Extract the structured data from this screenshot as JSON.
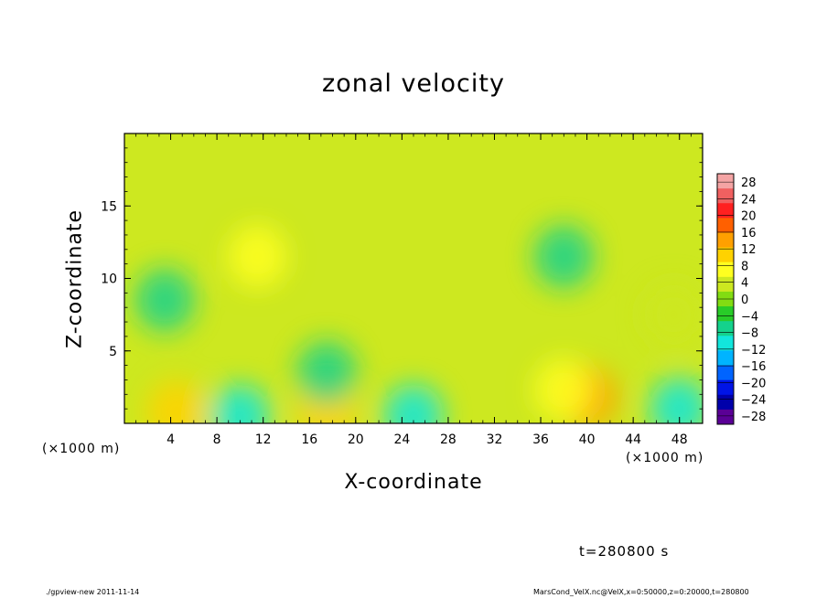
{
  "chart_data": {
    "type": "heatmap",
    "title": "zonal velocity",
    "xlabel": "X-coordinate",
    "ylabel": "Z-coordinate",
    "x_unit": "(×1000 m)",
    "x_range": [
      0,
      50
    ],
    "y_range": [
      0,
      20
    ],
    "x_ticks": [
      4,
      8,
      12,
      16,
      20,
      24,
      28,
      32,
      36,
      40,
      44,
      48
    ],
    "y_ticks": [
      5,
      10,
      15
    ],
    "colorbar": {
      "levels": [
        28,
        24,
        20,
        16,
        12,
        8,
        4,
        0,
        -4,
        -8,
        -12,
        -16,
        -20,
        -24,
        -28
      ],
      "range": [
        -30,
        30
      ],
      "colors": [
        "#f4a4a4",
        "#f06060",
        "#ff2020",
        "#ff6000",
        "#ffa000",
        "#ffd200",
        "#ffff20",
        "#cde820",
        "#82dc12",
        "#28cc28",
        "#14d28c",
        "#12e6dc",
        "#00b4ff",
        "#0064ff",
        "#0014e6",
        "#0000aa",
        "#5a0096"
      ]
    },
    "features": [
      {
        "x": 4.5,
        "z": 0.8,
        "value": 10
      },
      {
        "x": 17.5,
        "z": 1.0,
        "value": 9
      },
      {
        "x": 11.5,
        "z": 11.5,
        "value": 6
      },
      {
        "x": 40.0,
        "z": 1.8,
        "value": 14
      },
      {
        "x": 38.0,
        "z": 2.3,
        "value": 8
      },
      {
        "x": 47.5,
        "z": 7.5,
        "value": 5
      },
      {
        "x": 3.5,
        "z": 8.5,
        "value": -8
      },
      {
        "x": 38.0,
        "z": 11.5,
        "value": -8
      },
      {
        "x": 17.5,
        "z": 3.5,
        "value": -8
      },
      {
        "x": 10.0,
        "z": 0.5,
        "value": -9
      },
      {
        "x": 25.0,
        "z": 0.5,
        "value": -10
      },
      {
        "x": 48.0,
        "z": 1.0,
        "value": -9
      }
    ]
  },
  "labels": {
    "time": "t=280800 s",
    "footer_left": "./gpview-new  2011-11-14",
    "footer_right": "MarsCond_VelX.nc@VelX,x=0:50000,z=0:20000,t=280800"
  }
}
